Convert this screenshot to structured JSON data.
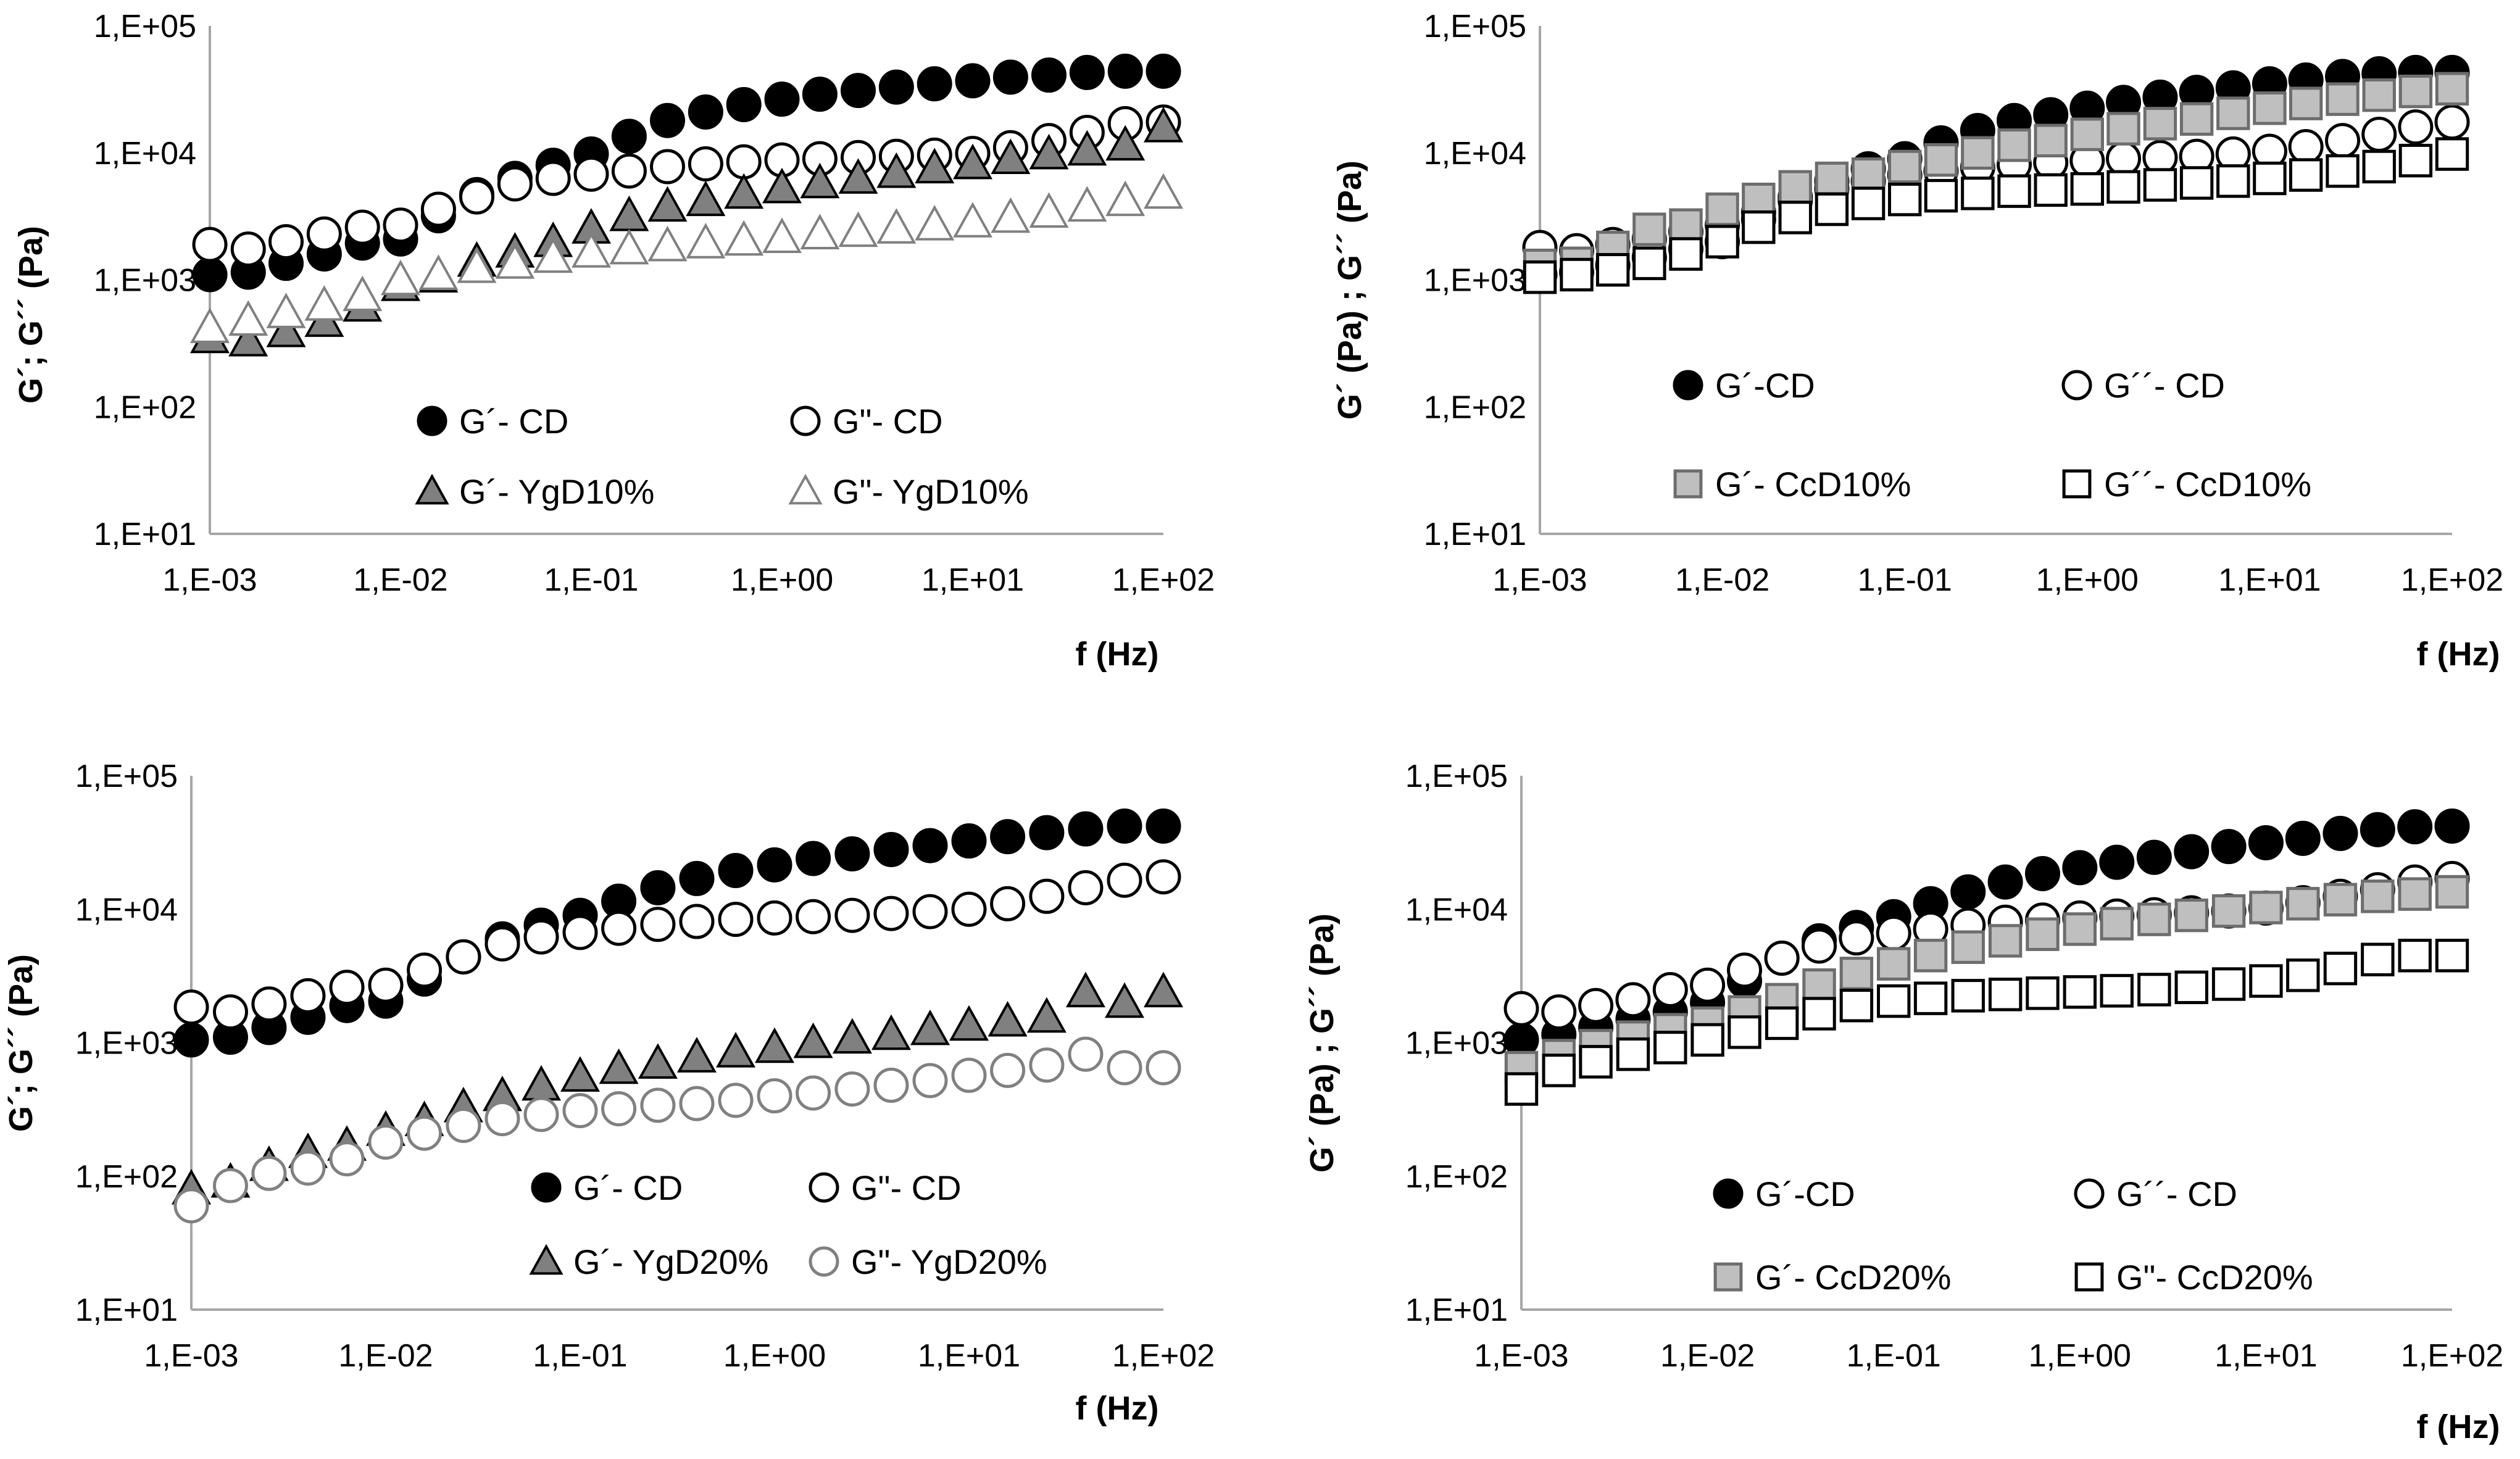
{
  "chart_data": [
    {
      "type": "scatter",
      "title": "",
      "xlabel": "f (Hz)",
      "ylabel": "G´; G´´ (Pa)",
      "xscale": "log",
      "yscale": "log",
      "xlim": [
        0.001,
        100
      ],
      "ylim": [
        10,
        100000
      ],
      "xticks": [
        "1,E-03",
        "1,E-02",
        "1,E-01",
        "1,E+00",
        "1,E+01",
        "1,E+02"
      ],
      "yticks": [
        "1,E+01",
        "1,E+02",
        "1,E+03",
        "1,E+04",
        "1,E+05"
      ],
      "series": [
        {
          "name": "G´- CD",
          "marker": "filled-circle",
          "x": [
            0.001,
            0.00159,
            0.00251,
            0.00398,
            0.00631,
            0.01,
            0.0158,
            0.0251,
            0.0398,
            0.0631,
            0.1,
            0.158,
            0.251,
            0.398,
            0.631,
            1,
            1.58,
            2.51,
            3.98,
            6.31,
            10,
            15.8,
            25.1,
            39.8,
            63.1,
            100
          ],
          "y": [
            1100,
            1150,
            1350,
            1600,
            1950,
            2100,
            3200,
            4700,
            6300,
            8000,
            9800,
            13500,
            18000,
            21000,
            24000,
            26500,
            29000,
            31000,
            33000,
            35000,
            37000,
            39500,
            41000,
            43000,
            44000,
            44000
          ]
        },
        {
          "name": "G\"- CD",
          "marker": "open-circle",
          "x": [
            0.001,
            0.00159,
            0.00251,
            0.00398,
            0.00631,
            0.01,
            0.0158,
            0.0251,
            0.0398,
            0.0631,
            0.1,
            0.158,
            0.251,
            0.398,
            0.631,
            1,
            1.58,
            2.51,
            3.98,
            6.31,
            10,
            15.8,
            25.1,
            39.8,
            63.1,
            100
          ],
          "y": [
            1900,
            1750,
            2000,
            2300,
            2600,
            2700,
            3600,
            4500,
            5700,
            6300,
            6800,
            7200,
            7800,
            8200,
            8500,
            8800,
            9000,
            9200,
            9400,
            9600,
            9900,
            11000,
            12500,
            14500,
            17000,
            17500
          ]
        },
        {
          "name": "G´- YgD10%",
          "marker": "filled-triangle",
          "x": [
            0.001,
            0.00159,
            0.00251,
            0.00398,
            0.00631,
            0.01,
            0.0158,
            0.0251,
            0.0398,
            0.0631,
            0.1,
            0.158,
            0.251,
            0.398,
            0.631,
            1,
            1.58,
            2.51,
            3.98,
            6.31,
            10,
            15.8,
            25.1,
            39.8,
            63.1,
            100
          ],
          "y": [
            350,
            330,
            390,
            470,
            620,
            900,
            1050,
            1400,
            1650,
            2000,
            2550,
            3200,
            3800,
            4200,
            4800,
            5300,
            5800,
            6300,
            7000,
            7600,
            8200,
            9000,
            9800,
            10500,
            11500,
            16000
          ]
        },
        {
          "name": "G\"- YgD10%",
          "marker": "open-triangle",
          "x": [
            0.001,
            0.00159,
            0.00251,
            0.00398,
            0.00631,
            0.01,
            0.0158,
            0.0251,
            0.0398,
            0.0631,
            0.1,
            0.158,
            0.251,
            0.398,
            0.631,
            1,
            1.58,
            2.51,
            3.98,
            6.31,
            10,
            15.8,
            25.1,
            39.8,
            63.1,
            100
          ],
          "y": [
            420,
            480,
            550,
            630,
            750,
            1000,
            1100,
            1250,
            1350,
            1500,
            1650,
            1750,
            1850,
            1950,
            2050,
            2150,
            2300,
            2400,
            2550,
            2700,
            2850,
            3100,
            3400,
            3800,
            4200,
            4800
          ]
        }
      ],
      "legend": "inside-bottom"
    },
    {
      "type": "scatter",
      "title": "",
      "xlabel": "f (Hz)",
      "ylabel": "G´ (Pa) ; G´´ (Pa)",
      "xscale": "log",
      "yscale": "log",
      "xlim": [
        0.001,
        100
      ],
      "ylim": [
        10,
        100000
      ],
      "xticks": [
        "1,E-03",
        "1,E-02",
        "1,E-01",
        "1,E+00",
        "1,E+01",
        "1,E+02"
      ],
      "yticks": [
        "1,E+01",
        "1,E+02",
        "1,E+03",
        "1,E+04",
        "1,E+05"
      ],
      "series": [
        {
          "name": "G´-CD",
          "marker": "filled-circle",
          "x": [
            0.001,
            0.00159,
            0.00251,
            0.00398,
            0.00631,
            0.01,
            0.0158,
            0.0251,
            0.0398,
            0.0631,
            0.1,
            0.158,
            0.251,
            0.398,
            0.631,
            1,
            1.58,
            2.51,
            3.98,
            6.31,
            10,
            15.8,
            25.1,
            39.8,
            63.1,
            100
          ],
          "y": [
            1100,
            1150,
            1300,
            1500,
            1750,
            2000,
            3000,
            4500,
            6000,
            7500,
            9000,
            12000,
            15000,
            18000,
            20000,
            22500,
            25000,
            27500,
            30000,
            32500,
            35000,
            37500,
            40000,
            42000,
            43000,
            43000
          ]
        },
        {
          "name": "G´´- CD",
          "marker": "open-circle",
          "x": [
            0.001,
            0.00159,
            0.00251,
            0.00398,
            0.00631,
            0.01,
            0.0158,
            0.0251,
            0.0398,
            0.0631,
            0.1,
            0.158,
            0.251,
            0.398,
            0.631,
            1,
            1.58,
            2.51,
            3.98,
            6.31,
            10,
            15.8,
            25.1,
            39.8,
            63.1,
            100
          ],
          "y": [
            1800,
            1700,
            1900,
            2100,
            2400,
            2700,
            3400,
            4200,
            5200,
            6000,
            6700,
            7200,
            7700,
            8100,
            8400,
            8700,
            9000,
            9200,
            9400,
            9800,
            10300,
            11200,
            12500,
            14000,
            16000,
            17500
          ]
        },
        {
          "name": "G´- CcD10%",
          "marker": "filled-square",
          "x": [
            0.001,
            0.00159,
            0.00251,
            0.00398,
            0.00631,
            0.01,
            0.0158,
            0.0251,
            0.0398,
            0.0631,
            0.1,
            0.158,
            0.251,
            0.398,
            0.631,
            1,
            1.58,
            2.51,
            3.98,
            6.31,
            10,
            15.8,
            25.1,
            39.8,
            63.1,
            100
          ],
          "y": [
            1300,
            1350,
            1800,
            2500,
            2700,
            3600,
            4300,
            5400,
            6300,
            6800,
            7800,
            8800,
            10000,
            11500,
            12500,
            14000,
            15500,
            17000,
            18500,
            20500,
            22500,
            24500,
            26500,
            28500,
            30500,
            32000
          ]
        },
        {
          "name": "G´´- CcD10%",
          "marker": "open-square",
          "x": [
            0.001,
            0.00159,
            0.00251,
            0.00398,
            0.00631,
            0.01,
            0.0158,
            0.0251,
            0.0398,
            0.0631,
            0.1,
            0.158,
            0.251,
            0.398,
            0.631,
            1,
            1.58,
            2.51,
            3.98,
            6.31,
            10,
            15.8,
            25.1,
            39.8,
            63.1,
            100
          ],
          "y": [
            1050,
            1100,
            1200,
            1350,
            1600,
            2000,
            2600,
            3100,
            3600,
            4000,
            4300,
            4600,
            4800,
            5000,
            5100,
            5200,
            5400,
            5600,
            5800,
            6000,
            6300,
            6700,
            7200,
            7800,
            8700,
            9800
          ]
        }
      ],
      "legend": "inside-bottom"
    },
    {
      "type": "scatter",
      "title": "",
      "xlabel": "f (Hz)",
      "ylabel": "G´; G´´ (Pa)",
      "xscale": "log",
      "yscale": "log",
      "xlim": [
        0.001,
        100
      ],
      "ylim": [
        10,
        100000
      ],
      "xticks": [
        "1,E-03",
        "1,E-02",
        "1,E-01",
        "1,E+00",
        "1,E+01",
        "1,E+02"
      ],
      "yticks": [
        "1,E+01",
        "1,E+02",
        "1,E+03",
        "1,E+04",
        "1,E+05"
      ],
      "series": [
        {
          "name": "G´- CD",
          "marker": "filled-circle",
          "x": [
            0.001,
            0.00159,
            0.00251,
            0.00398,
            0.00631,
            0.01,
            0.0158,
            0.0251,
            0.0398,
            0.0631,
            0.1,
            0.158,
            0.251,
            0.398,
            0.631,
            1,
            1.58,
            2.51,
            3.98,
            6.31,
            10,
            15.8,
            25.1,
            39.8,
            63.1,
            100
          ],
          "y": [
            1050,
            1100,
            1300,
            1550,
            1900,
            2050,
            3000,
            4400,
            6000,
            7600,
            9000,
            11500,
            14500,
            17000,
            19500,
            21500,
            24000,
            26000,
            28000,
            30000,
            32500,
            35000,
            37500,
            40000,
            42000,
            42000
          ]
        },
        {
          "name": "G\"- CD",
          "marker": "open-circle",
          "x": [
            0.001,
            0.00159,
            0.00251,
            0.00398,
            0.00631,
            0.01,
            0.0158,
            0.0251,
            0.0398,
            0.0631,
            0.1,
            0.158,
            0.251,
            0.398,
            0.631,
            1,
            1.58,
            2.51,
            3.98,
            6.31,
            10,
            15.8,
            25.1,
            39.8,
            63.1,
            100
          ],
          "y": [
            1850,
            1700,
            1950,
            2250,
            2600,
            2700,
            3500,
            4400,
            5500,
            6200,
            6700,
            7200,
            7700,
            8100,
            8400,
            8600,
            8800,
            9000,
            9300,
            9600,
            10000,
            11000,
            12500,
            14500,
            16500,
            17500
          ]
        },
        {
          "name": "G´- YgD20%",
          "marker": "filled-triangle",
          "x": [
            0.001,
            0.00159,
            0.00251,
            0.00398,
            0.00631,
            0.01,
            0.0158,
            0.0251,
            0.0398,
            0.0631,
            0.1,
            0.158,
            0.251,
            0.398,
            0.631,
            1,
            1.58,
            2.51,
            3.98,
            6.31,
            10,
            15.8,
            25.1,
            39.8,
            63.1,
            100
          ],
          "y": [
            80,
            90,
            120,
            150,
            170,
            220,
            260,
            330,
            400,
            480,
            560,
            640,
            700,
            780,
            850,
            920,
            1000,
            1080,
            1150,
            1250,
            1350,
            1450,
            1550,
            2400,
            2000,
            2400
          ]
        },
        {
          "name": "G\"- YgD20%",
          "marker": "open-circle-gray",
          "x": [
            0.001,
            0.00159,
            0.00251,
            0.00398,
            0.00631,
            0.01,
            0.0158,
            0.0251,
            0.0398,
            0.0631,
            0.1,
            0.158,
            0.251,
            0.398,
            0.631,
            1,
            1.58,
            2.51,
            3.98,
            6.31,
            10,
            15.8,
            25.1,
            39.8,
            63.1,
            100
          ],
          "y": [
            60,
            85,
            105,
            115,
            135,
            180,
            210,
            240,
            270,
            290,
            310,
            320,
            340,
            350,
            370,
            400,
            420,
            450,
            480,
            520,
            570,
            620,
            680,
            820,
            650,
            650
          ]
        }
      ],
      "legend": "inside-bottom"
    },
    {
      "type": "scatter",
      "title": "",
      "xlabel": "f (Hz)",
      "ylabel": "G´ (Pa) ; G´´ (Pa)",
      "xscale": "log",
      "yscale": "log",
      "xlim": [
        0.001,
        100
      ],
      "ylim": [
        10,
        100000
      ],
      "xticks": [
        "1,E-03",
        "1,E-02",
        "1,E-01",
        "1,E+00",
        "1,E+01",
        "1,E+02"
      ],
      "yticks": [
        "1,E+01",
        "1,E+02",
        "1,E+03",
        "1,E+04",
        "1,E+05"
      ],
      "series": [
        {
          "name": "G´-CD",
          "marker": "filled-circle",
          "x": [
            0.001,
            0.00159,
            0.00251,
            0.00398,
            0.00631,
            0.01,
            0.0158,
            0.0251,
            0.0398,
            0.0631,
            0.1,
            0.158,
            0.251,
            0.398,
            0.631,
            1,
            1.58,
            2.51,
            3.98,
            6.31,
            10,
            15.8,
            25.1,
            39.8,
            63.1,
            100
          ],
          "y": [
            1050,
            1150,
            1300,
            1500,
            1700,
            2000,
            2900,
            4300,
            5800,
            7300,
            8800,
            11000,
            13500,
            16000,
            18500,
            20500,
            22500,
            24500,
            27000,
            29500,
            31500,
            34000,
            37000,
            39500,
            41500,
            42000
          ]
        },
        {
          "name": "G´´- CD",
          "marker": "open-circle",
          "x": [
            0.001,
            0.00159,
            0.00251,
            0.00398,
            0.00631,
            0.01,
            0.0158,
            0.0251,
            0.0398,
            0.0631,
            0.1,
            0.158,
            0.251,
            0.398,
            0.631,
            1,
            1.58,
            2.51,
            3.98,
            6.31,
            10,
            15.8,
            25.1,
            39.8,
            63.1,
            100
          ],
          "y": [
            1800,
            1700,
            1900,
            2100,
            2500,
            2700,
            3500,
            4300,
            5300,
            6100,
            6600,
            7100,
            7600,
            8000,
            8300,
            8600,
            8900,
            9100,
            9400,
            9700,
            10200,
            11200,
            12500,
            14000,
            16000,
            17000
          ]
        },
        {
          "name": "G´- CcD20%",
          "marker": "filled-square",
          "x": [
            0.001,
            0.00159,
            0.00251,
            0.00398,
            0.00631,
            0.01,
            0.0158,
            0.0251,
            0.0398,
            0.0631,
            0.1,
            0.158,
            0.251,
            0.398,
            0.631,
            1,
            1.58,
            2.51,
            3.98,
            6.31,
            10,
            15.8,
            25.1,
            39.8,
            63.1,
            100
          ],
          "y": [
            650,
            800,
            950,
            1100,
            1250,
            1400,
            1700,
            2100,
            2700,
            3300,
            3900,
            4500,
            5200,
            5800,
            6500,
            7100,
            7800,
            8400,
            9000,
            9700,
            10300,
            11000,
            11800,
            12500,
            13000,
            13500
          ]
        },
        {
          "name": "G\"- CcD20%",
          "marker": "open-square",
          "x": [
            0.001,
            0.00159,
            0.00251,
            0.00398,
            0.00631,
            0.01,
            0.0158,
            0.0251,
            0.0398,
            0.0631,
            0.1,
            0.158,
            0.251,
            0.398,
            0.631,
            1,
            1.58,
            2.51,
            3.98,
            6.31,
            10,
            15.8,
            25.1,
            39.8,
            63.1,
            100
          ],
          "y": [
            450,
            620,
            720,
            820,
            920,
            1050,
            1200,
            1400,
            1650,
            1900,
            2050,
            2150,
            2250,
            2300,
            2350,
            2400,
            2450,
            2500,
            2600,
            2750,
            2900,
            3200,
            3600,
            4200,
            4500,
            4500
          ]
        }
      ],
      "legend": "inside-bottom"
    }
  ]
}
